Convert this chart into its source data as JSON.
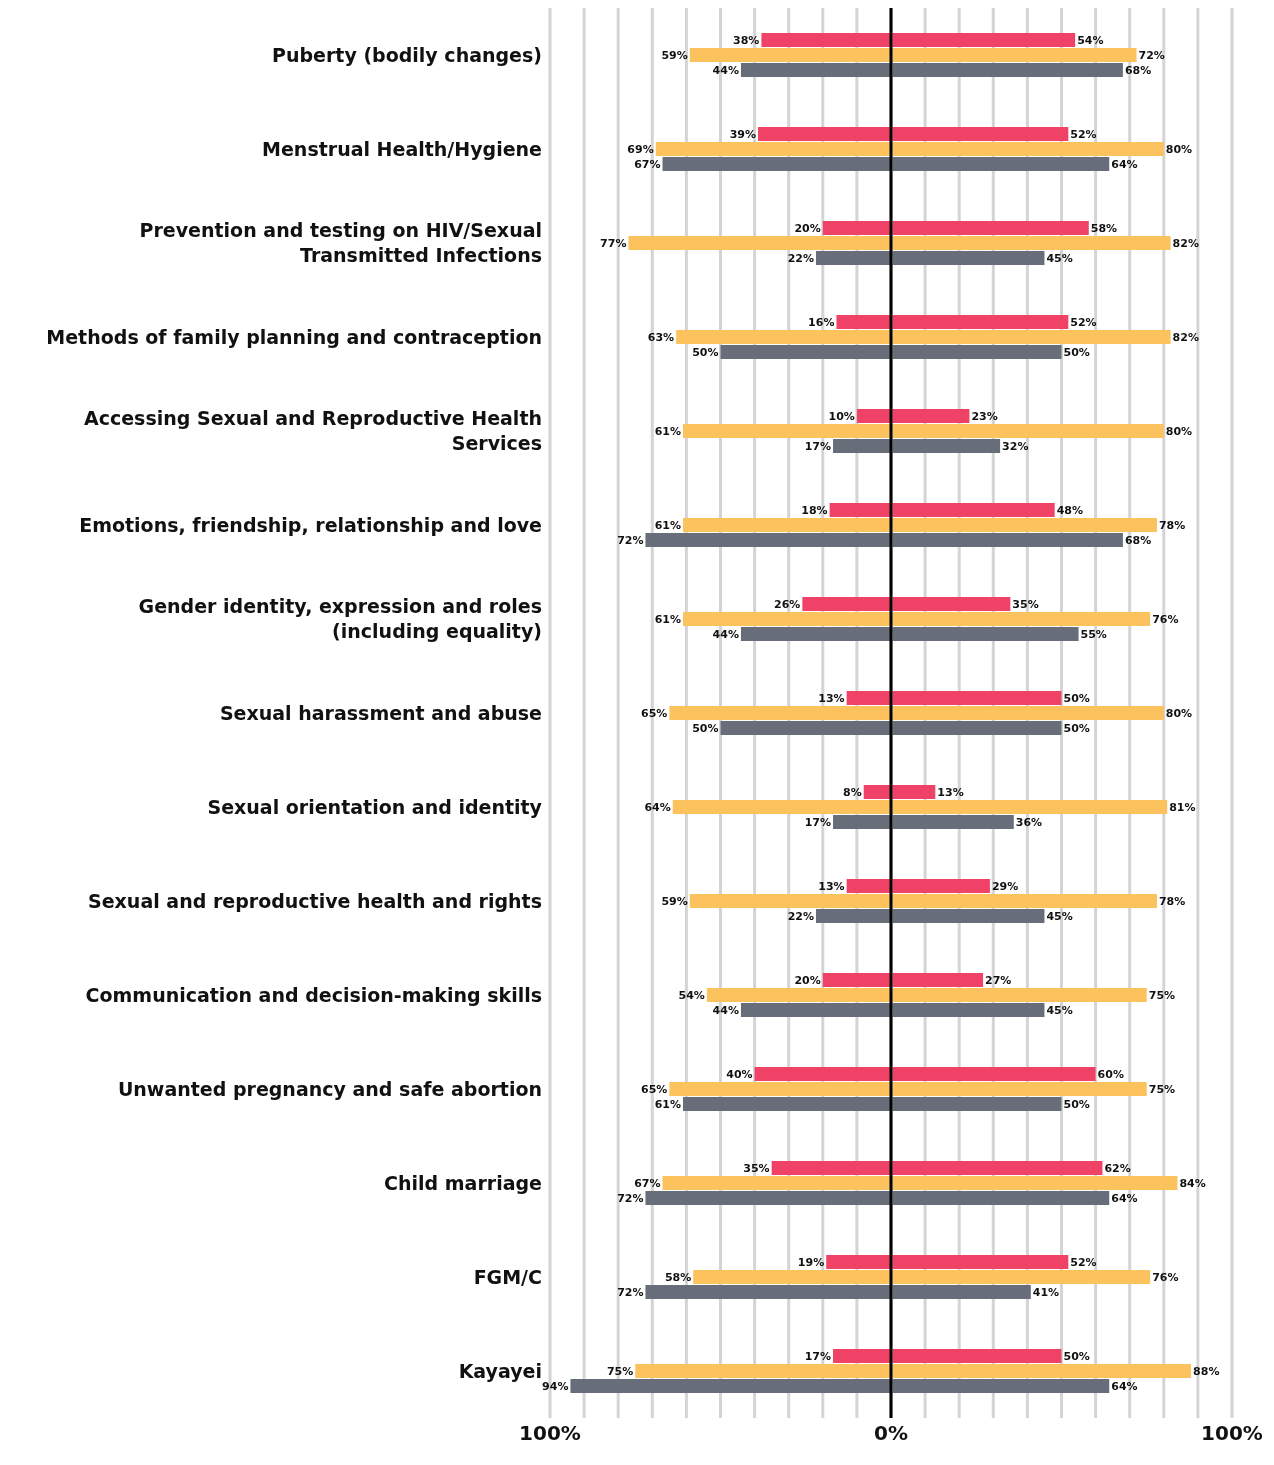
{
  "chart_data": [
    {
      "type": "bar",
      "orientation": "horizontal",
      "grid": "x",
      "categories": [
        "Puberty (bodily changes)",
        "Menstrual Health/Hygiene",
        "Prevention and testing on HIV/Sexual Transmitted Infections",
        "Methods of family planning and contraception",
        "Accessing Sexual and Reproductive Health Services",
        "Emotions, friendship, relationship and love",
        "Gender identity, expression and roles (including equality)",
        "Sexual harassment and abuse",
        "Sexual orientation and identity",
        "Sexual and reproductive health and rights",
        "Communication and decision-making skills",
        "Unwanted pregnancy and safe abortion",
        "Child marriage",
        "FGM/C",
        "Kayayei"
      ],
      "xlim": [
        100,
        0
      ],
      "xticks": [
        {
          "value": 100,
          "label": "100%"
        },
        {
          "value": 90,
          "label": null
        },
        {
          "value": 80,
          "label": null
        },
        {
          "value": 70,
          "label": null
        },
        {
          "value": 60,
          "label": null
        },
        {
          "value": 50,
          "label": null
        },
        {
          "value": 40,
          "label": null
        },
        {
          "value": 30,
          "label": null
        },
        {
          "value": 20,
          "label": null
        },
        {
          "value": 10,
          "label": null
        },
        {
          "value": 0,
          "label": "0%"
        }
      ],
      "ref_lines": [
        {
          "axis": "x",
          "value": 0,
          "color": "#000000"
        }
      ],
      "series": [
        {
          "color": "#ef4266",
          "values": [
            38,
            39,
            20,
            16,
            10,
            18,
            26,
            13,
            8,
            13,
            20,
            40,
            35,
            19,
            17
          ],
          "value_labels": [
            "38%",
            "39%",
            "20%",
            "16%",
            "10%",
            "18%",
            "26%",
            "13%",
            "8%",
            "13%",
            "20%",
            "40%",
            "35%",
            "19%",
            "17%"
          ]
        },
        {
          "color": "#fbc25e",
          "values": [
            59,
            69,
            77,
            63,
            61,
            61,
            61,
            65,
            64,
            59,
            54,
            65,
            67,
            58,
            75
          ],
          "value_labels": [
            "59%",
            "69%",
            "77%",
            "63%",
            "61%",
            "61%",
            "61%",
            "65%",
            "64%",
            "59%",
            "54%",
            "65%",
            "67%",
            "58%",
            "75%"
          ]
        },
        {
          "color": "#676e79",
          "values": [
            44,
            67,
            22,
            50,
            17,
            72,
            44,
            50,
            17,
            22,
            44,
            61,
            72,
            72,
            94
          ],
          "value_labels": [
            "44%",
            "67%",
            "22%",
            "50%",
            "17%",
            "72%",
            "44%",
            "50%",
            "17%",
            "22%",
            "44%",
            "61%",
            "72%",
            "72%",
            "94%"
          ]
        }
      ]
    },
    {
      "type": "bar",
      "orientation": "horizontal",
      "grid": "x",
      "tick_labels": "x",
      "categories": [
        null,
        null,
        null,
        null,
        null,
        null,
        null,
        null,
        null,
        null,
        null,
        null,
        null,
        null,
        null
      ],
      "xlim": [
        0,
        100
      ],
      "xticks": [
        {
          "value": 10,
          "label": null
        },
        {
          "value": 20,
          "label": null
        },
        {
          "value": 30,
          "label": null
        },
        {
          "value": 40,
          "label": null
        },
        {
          "value": 50,
          "label": null
        },
        {
          "value": 60,
          "label": null
        },
        {
          "value": 70,
          "label": null
        },
        {
          "value": 80,
          "label": null
        },
        {
          "value": 90,
          "label": null
        },
        {
          "value": 100,
          "label": "100%"
        }
      ],
      "series": [
        {
          "color": "#ef4266",
          "values": [
            54,
            52,
            58,
            52,
            23,
            48,
            35,
            50,
            13,
            29,
            27,
            60,
            62,
            52,
            50
          ],
          "value_labels": [
            "54%",
            "52%",
            "58%",
            "52%",
            "23%",
            "48%",
            "35%",
            "50%",
            "13%",
            "29%",
            "27%",
            "60%",
            "62%",
            "52%",
            "50%"
          ]
        },
        {
          "color": "#fbc25e",
          "values": [
            72,
            80,
            82,
            82,
            80,
            78,
            76,
            80,
            81,
            78,
            75,
            75,
            84,
            76,
            88
          ],
          "value_labels": [
            "72%",
            "80%",
            "82%",
            "82%",
            "80%",
            "78%",
            "76%",
            "80%",
            "81%",
            "78%",
            "75%",
            "75%",
            "84%",
            "76%",
            "88%"
          ]
        },
        {
          "color": "#676e79",
          "values": [
            68,
            64,
            45,
            50,
            32,
            68,
            55,
            50,
            36,
            45,
            45,
            50,
            64,
            41,
            64
          ],
          "value_labels": [
            "68%",
            "64%",
            "45%",
            "50%",
            "32%",
            "68%",
            "55%",
            "50%",
            "36%",
            "45%",
            "45%",
            "50%",
            "64%",
            "41%",
            "64%"
          ]
        }
      ]
    }
  ]
}
